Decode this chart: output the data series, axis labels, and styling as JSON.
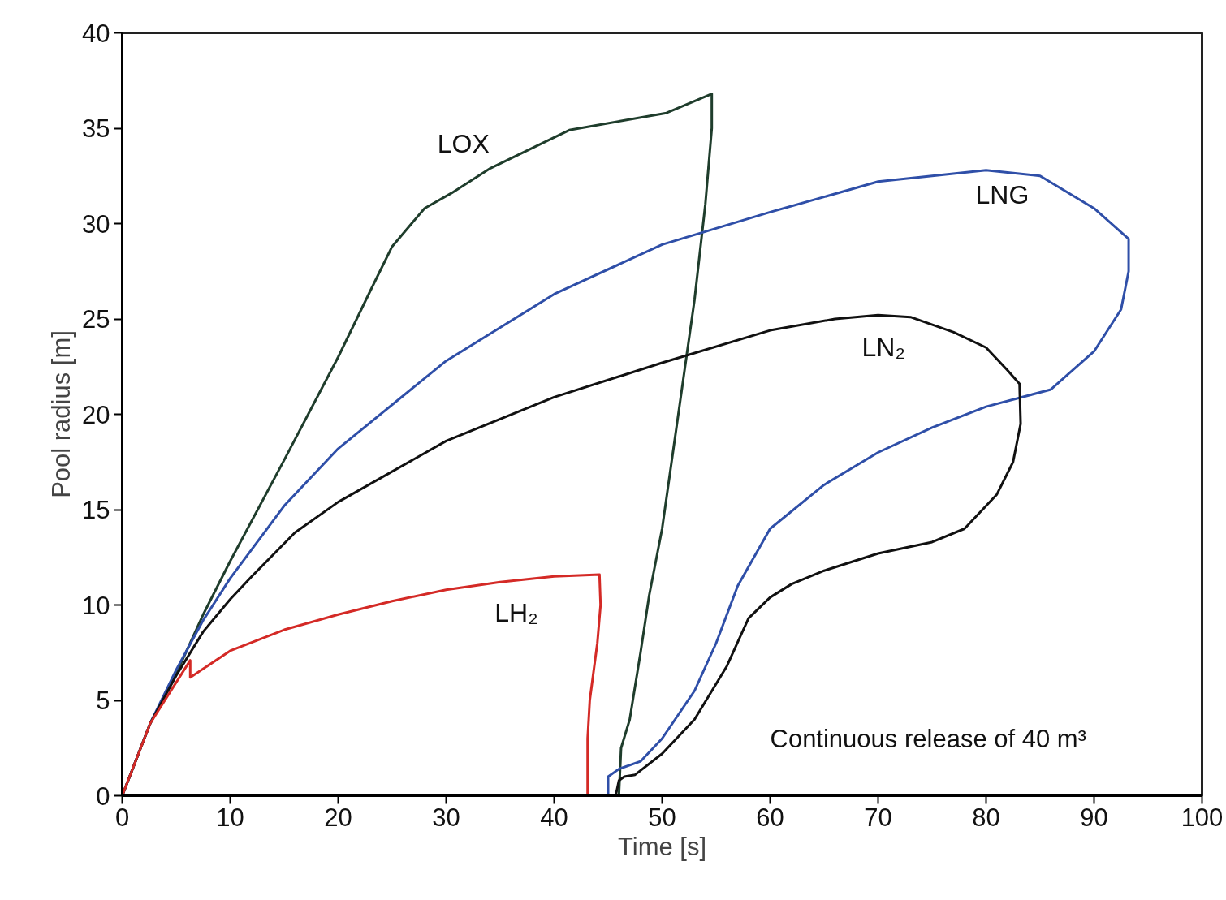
{
  "chart_data": {
    "type": "line",
    "xlabel": "Time [s]",
    "ylabel": "Pool radius [m]",
    "xlim": [
      0,
      100
    ],
    "xticks": [
      0,
      10,
      20,
      30,
      40,
      50,
      60,
      70,
      80,
      90,
      100
    ],
    "ylim": [
      0,
      40
    ],
    "yticks": [
      0,
      5,
      10,
      15,
      20,
      25,
      30,
      35,
      40
    ],
    "grid": false,
    "legend": false,
    "marker": "none",
    "line_style": "solid",
    "series": [
      {
        "name": "LOX",
        "color": "#1f3d2c",
        "x": [
          0,
          2.6,
          5,
          7.5,
          10,
          15,
          20,
          23,
          25,
          28,
          30.5,
          34.1,
          41.4,
          50.4,
          54.6,
          54.6,
          54,
          53,
          51.5,
          50,
          48.8,
          48,
          47,
          46.2,
          46
        ],
        "values": [
          0,
          3.8,
          6.4,
          9.5,
          12.3,
          17.6,
          23,
          26.5,
          28.8,
          30.8,
          31.6,
          32.9,
          34.9,
          35.8,
          36.8,
          35,
          31,
          26,
          20,
          14,
          10.5,
          7.5,
          4,
          2.5,
          0
        ]
      },
      {
        "name": "LNG",
        "color": "#2f4fa8",
        "x": [
          0,
          2.6,
          5,
          7.5,
          10,
          15,
          20,
          30,
          40,
          50,
          60,
          70,
          80,
          85,
          90,
          93.2,
          93.2,
          92.5,
          90,
          86,
          80,
          75,
          70,
          65,
          60,
          57,
          55,
          53,
          50,
          48,
          46,
          45,
          45
        ],
        "values": [
          0,
          3.8,
          6.6,
          9.2,
          11.4,
          15.2,
          18.2,
          22.8,
          26.3,
          28.9,
          30.6,
          32.2,
          32.8,
          32.5,
          30.8,
          29.2,
          27.5,
          25.5,
          23.3,
          21.3,
          20.4,
          19.3,
          18,
          16.3,
          14,
          11,
          8,
          5.5,
          3,
          1.8,
          1.4,
          1,
          0
        ]
      },
      {
        "name": "LN₂",
        "color": "#111111",
        "x": [
          0,
          2.6,
          5,
          7.5,
          10,
          12,
          16,
          20,
          30,
          40,
          50,
          60,
          66,
          70,
          73,
          77,
          80,
          82,
          83.1,
          83.2,
          82.5,
          81,
          78,
          75,
          70,
          65,
          62,
          60,
          58,
          56,
          53,
          50,
          47.5,
          46.5,
          46,
          45.7
        ],
        "values": [
          0,
          3.8,
          6.3,
          8.6,
          10.3,
          11.5,
          13.8,
          15.4,
          18.6,
          20.9,
          22.7,
          24.4,
          25,
          25.2,
          25.1,
          24.3,
          23.5,
          22.3,
          21.6,
          19.5,
          17.5,
          15.8,
          14,
          13.3,
          12.7,
          11.8,
          11.1,
          10.4,
          9.3,
          6.8,
          4,
          2.2,
          1.1,
          1,
          0.8,
          0
        ]
      },
      {
        "name": "LH₂",
        "color": "#d42a26",
        "x": [
          0,
          2.6,
          6.3,
          6.3,
          10,
          15,
          20,
          25,
          30,
          35,
          40,
          44.2,
          44.3,
          44,
          43.3,
          43.1,
          43.1
        ],
        "values": [
          0,
          3.8,
          7.1,
          6.2,
          7.6,
          8.7,
          9.5,
          10.2,
          10.8,
          11.2,
          11.5,
          11.6,
          10,
          8,
          5,
          3,
          0
        ]
      }
    ],
    "annotations": [
      "Continuous release of 40 m³"
    ]
  }
}
